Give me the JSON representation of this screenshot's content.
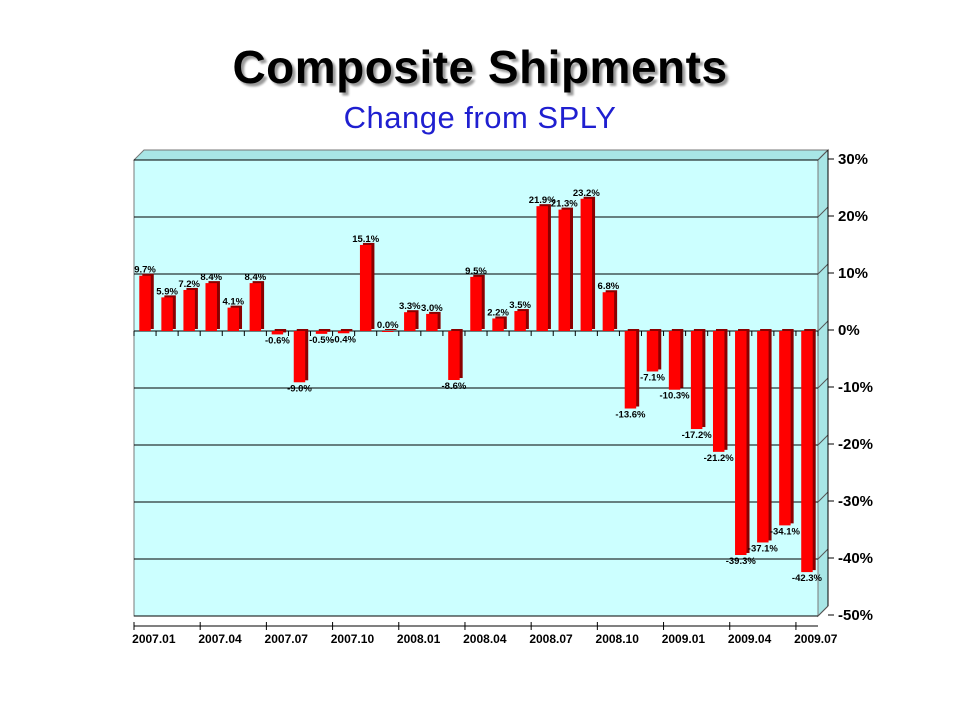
{
  "chart_data": {
    "type": "bar",
    "title": "Composite Shipments",
    "subtitle": "Change from SPLY",
    "ylim": [
      -50,
      30
    ],
    "y_ticks": [
      30,
      20,
      10,
      0,
      -10,
      -20,
      -30,
      -40,
      -50
    ],
    "y_tick_labels": [
      "30%",
      "20%",
      "10%",
      "0%",
      "-10%",
      "-20%",
      "-30%",
      "-40%",
      "-50%"
    ],
    "y_axis_side": "right",
    "grid": true,
    "x_tick_labels": [
      "2007.01",
      "2007.04",
      "2007.07",
      "2007.10",
      "2008.01",
      "2008.04",
      "2008.07",
      "2008.10",
      "2009.01",
      "2009.04",
      "2009.07"
    ],
    "categories": [
      "2007.01",
      "2007.02",
      "2007.03",
      "2007.04",
      "2007.05",
      "2007.06",
      "2007.07",
      "2007.08",
      "2007.09",
      "2007.10",
      "2007.11",
      "2007.12",
      "2008.01",
      "2008.02",
      "2008.03",
      "2008.04",
      "2008.05",
      "2008.06",
      "2008.07",
      "2008.08",
      "2008.09",
      "2008.10",
      "2008.11",
      "2008.12",
      "2009.01",
      "2009.02",
      "2009.03",
      "2009.04",
      "2009.05",
      "2009.06",
      "2009.07"
    ],
    "values": [
      9.7,
      5.9,
      7.2,
      8.4,
      4.1,
      8.4,
      -0.6,
      -9.0,
      -0.5,
      -0.4,
      15.1,
      0.0,
      3.3,
      3.0,
      -8.6,
      9.5,
      2.2,
      3.5,
      21.9,
      21.3,
      23.2,
      6.8,
      -13.6,
      -7.1,
      -10.3,
      -17.2,
      -21.2,
      -39.3,
      -37.1,
      -34.1,
      -42.3
    ],
    "data_labels": [
      "9.7%",
      "5.9%",
      "7.2%",
      "8.4%",
      "4.1%",
      "8.4%",
      "-0.6%",
      "-9.0%",
      "-0.5%",
      "-0.4%",
      "15.1%",
      "0.0%",
      "3.3%",
      "3.0%",
      "-8.6%",
      "9.5%",
      "2.2%",
      "3.5%",
      "21.9%",
      "21.3%",
      "23.2%",
      "6.8%",
      "-13.6%",
      "-7.1%",
      "-10.3%",
      "-17.2%",
      "-21.2%",
      "-39.3%",
      "-37.1%",
      "-34.1%",
      "-42.3%"
    ],
    "colors": {
      "bar": "#ff0000",
      "bar_shadow": "#8a0000",
      "plot_background": "#ccffff",
      "gridline": "#000000"
    }
  }
}
